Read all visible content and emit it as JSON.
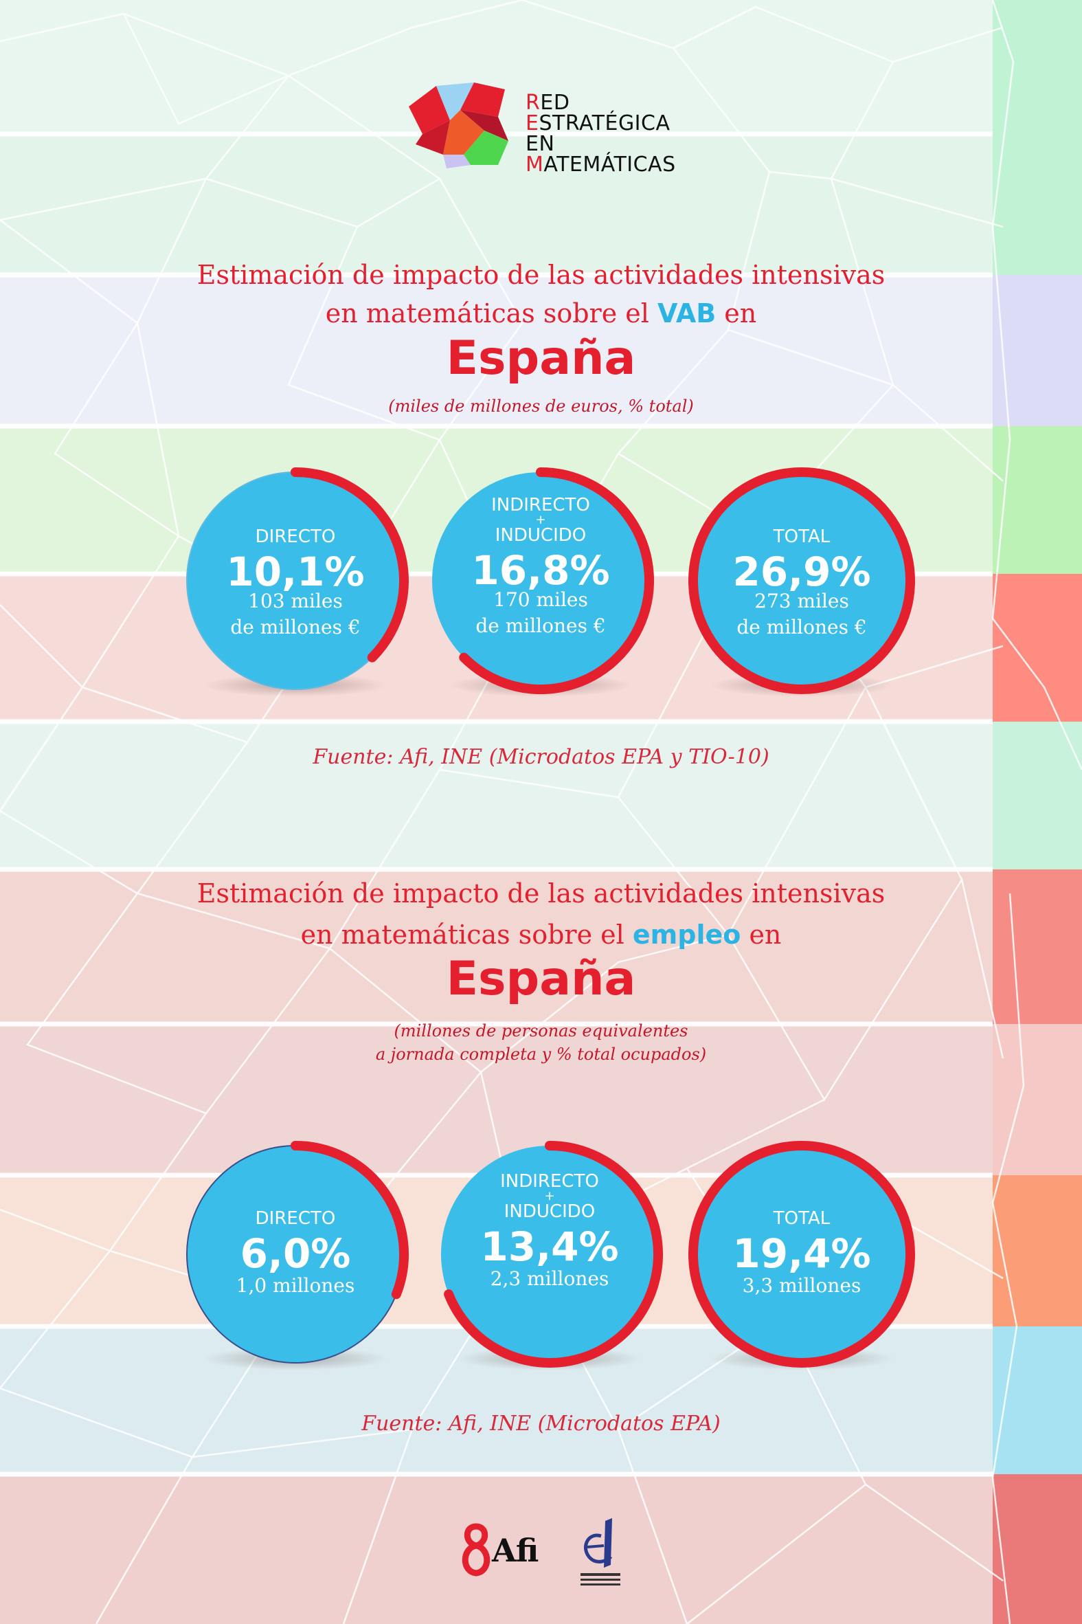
{
  "colors": {
    "accent_red": "#e4202f",
    "accent_blue": "#2bb3e3",
    "circle_fill": "#3bbde9"
  },
  "logo": {
    "lines": [
      {
        "first": "R",
        "rest": "ED"
      },
      {
        "first": "E",
        "rest": "STRATÉGICA EN"
      },
      {
        "first": "M",
        "rest": "ATEMÁTICAS"
      }
    ]
  },
  "section1": {
    "title_line1": "Estimación de impacto de las actividades intensivas",
    "title_line2_pre": "en matemáticas sobre el ",
    "title_highlight": "VAB",
    "title_line2_post": " en",
    "country": "España",
    "subtitle": "(miles de millones de euros, % total)",
    "source": "Fuente: Afi, INE (Microdatos EPA y TIO-10)",
    "kpis": [
      {
        "label": "DIRECTO",
        "label2": "",
        "plus": "",
        "pct": "10,1%",
        "detail1": "103 miles",
        "detail2": "de millones €",
        "fraction": 0.375
      },
      {
        "label": "INDIRECTO",
        "label2": "INDUCIDO",
        "plus": "+",
        "pct": "16,8%",
        "detail1": "170 miles",
        "detail2": "de millones €",
        "fraction": 0.625
      },
      {
        "label": "TOTAL",
        "label2": "",
        "plus": "",
        "pct": "26,9%",
        "detail1": "273 miles",
        "detail2": "de millones €",
        "fraction": 1.0
      }
    ]
  },
  "section2": {
    "title_line1": "Estimación de impacto de las actividades intensivas",
    "title_line2_pre": "en matemáticas sobre el ",
    "title_highlight": "empleo",
    "title_line2_post": " en",
    "country": "España",
    "subtitle_line1": "(millones de personas equivalentes",
    "subtitle_line2": "a jornada completa y % total ocupados)",
    "source": "Fuente: Afi, INE (Microdatos EPA)",
    "kpis": [
      {
        "label": "DIRECTO",
        "label2": "",
        "plus": "",
        "pct": "6,0%",
        "detail1": "1,0 millones",
        "fraction": 0.31
      },
      {
        "label": "INDIRECTO",
        "label2": "INDUCIDO",
        "plus": "+",
        "pct": "13,4%",
        "detail1": "2,3 millones",
        "fraction": 0.69
      },
      {
        "label": "TOTAL",
        "label2": "",
        "plus": "",
        "pct": "19,4%",
        "detail1": "3,3 millones",
        "fraction": 1.0
      }
    ]
  },
  "partners": {
    "afi": "Afi"
  }
}
